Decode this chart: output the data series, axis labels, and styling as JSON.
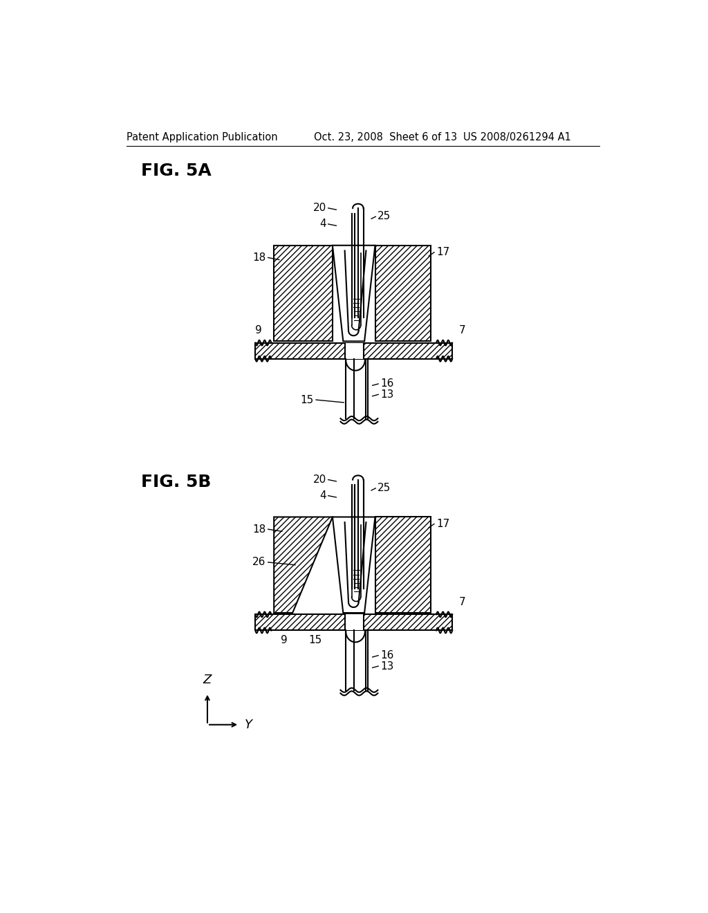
{
  "bg_color": "#ffffff",
  "header_left": "Patent Application Publication",
  "header_center": "Oct. 23, 2008  Sheet 6 of 13",
  "header_right": "US 2008/0261294 A1",
  "fig5a_label": "FIG. 5A",
  "fig5b_label": "FIG. 5B",
  "line_color": "#000000"
}
